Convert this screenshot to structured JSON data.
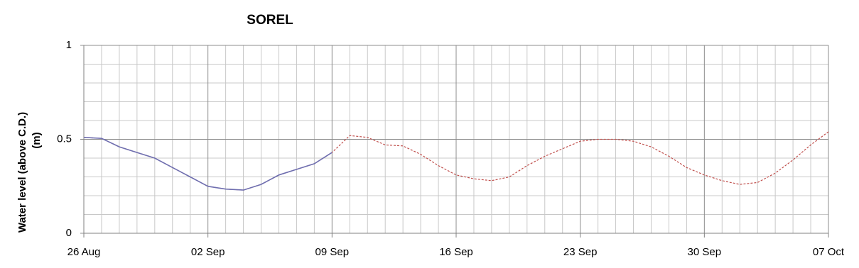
{
  "chart_data": {
    "type": "line",
    "title": "SOREL",
    "ylabel": [
      "Water level (above C.D.)",
      "(m)"
    ],
    "categories": [
      "26 Aug",
      null,
      null,
      null,
      null,
      null,
      null,
      "02 Sep",
      null,
      null,
      null,
      null,
      null,
      null,
      "09 Sep",
      null,
      null,
      null,
      null,
      null,
      null,
      "16 Sep",
      null,
      null,
      null,
      null,
      null,
      null,
      "23 Sep",
      null,
      null,
      null,
      null,
      null,
      null,
      "30 Sep",
      null,
      null,
      null,
      null,
      null,
      null,
      "07 Oct"
    ],
    "ylim": [
      0,
      1
    ],
    "yticks": [
      0,
      0.5,
      1
    ],
    "grid": true,
    "series": [
      {
        "color": "#c0504d",
        "dashed": true,
        "values": [
          0.51,
          0.505,
          0.46,
          0.43,
          0.4,
          0.35,
          0.3,
          0.25,
          0.235,
          0.23,
          0.26,
          0.31,
          0.34,
          0.37,
          0.43,
          0.52,
          0.51,
          0.47,
          0.465,
          0.42,
          0.36,
          0.31,
          0.29,
          0.28,
          0.3,
          0.36,
          0.41,
          0.45,
          0.49,
          0.5,
          0.5,
          0.49,
          0.46,
          0.41,
          0.35,
          0.31,
          0.28,
          0.26,
          0.27,
          0.32,
          0.39,
          0.47,
          0.54
        ]
      },
      {
        "color": "#6f6fb0",
        "dashed": false,
        "values": [
          0.51,
          0.505,
          0.46,
          0.43,
          0.4,
          0.35,
          0.3,
          0.25,
          0.235,
          0.23,
          0.26,
          0.31,
          0.34,
          0.37,
          0.43,
          null,
          null,
          null,
          null,
          null,
          null,
          null,
          null,
          null,
          null,
          null,
          null,
          null,
          null,
          null,
          null,
          null,
          null,
          null,
          null,
          null,
          null,
          null,
          null,
          null,
          null,
          null,
          null
        ]
      }
    ]
  }
}
